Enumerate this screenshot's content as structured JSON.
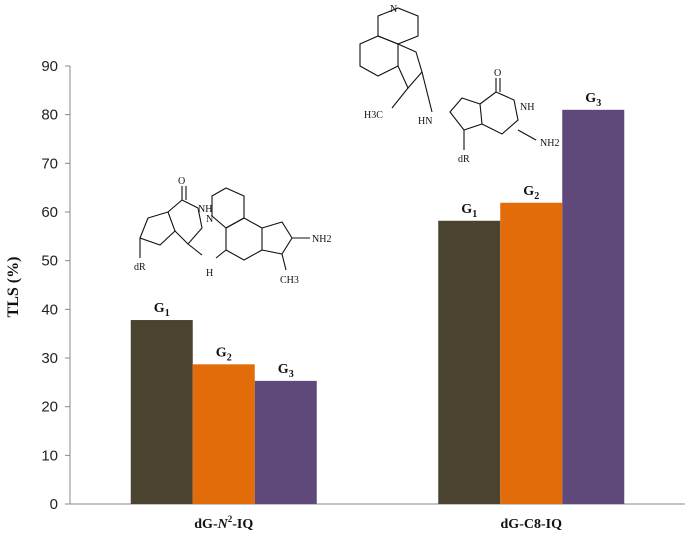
{
  "chart_data": {
    "type": "bar",
    "title": "",
    "xlabel": "",
    "ylabel": "TLS (%)",
    "ylim": [
      0,
      90
    ],
    "yticks": [
      0,
      10,
      20,
      30,
      40,
      50,
      60,
      70,
      80,
      90
    ],
    "grid": false,
    "categories": [
      "dG-N2-IQ",
      "dG-C8-IQ"
    ],
    "category_labels": [
      {
        "prefix": "dG-",
        "italic": "N",
        "sup": "2",
        "suffix": "-IQ"
      },
      {
        "prefix": "dG-C8-IQ",
        "italic": "",
        "sup": "",
        "suffix": ""
      }
    ],
    "series": [
      {
        "name": "G1",
        "label_base": "G",
        "label_sub": "1",
        "color": "#4a432f",
        "values": [
          37.8,
          58.2
        ]
      },
      {
        "name": "G2",
        "label_base": "G",
        "label_sub": "2",
        "color": "#e36c0a",
        "values": [
          28.7,
          61.9
        ]
      },
      {
        "name": "G3",
        "label_base": "G",
        "label_sub": "3",
        "color": "#5f497a",
        "values": [
          25.3,
          81.0
        ]
      }
    ]
  },
  "structures": {
    "n2": {
      "nh2": "NH2",
      "ch3": "CH3",
      "nh": "NH",
      "n": "N",
      "o": "O",
      "h": "H",
      "dr": "dR"
    },
    "c8": {
      "nh2": "NH2",
      "h3c": "H3C",
      "nh": "NH",
      "hn": "HN",
      "n": "N",
      "o": "O",
      "dr": "dR"
    }
  }
}
